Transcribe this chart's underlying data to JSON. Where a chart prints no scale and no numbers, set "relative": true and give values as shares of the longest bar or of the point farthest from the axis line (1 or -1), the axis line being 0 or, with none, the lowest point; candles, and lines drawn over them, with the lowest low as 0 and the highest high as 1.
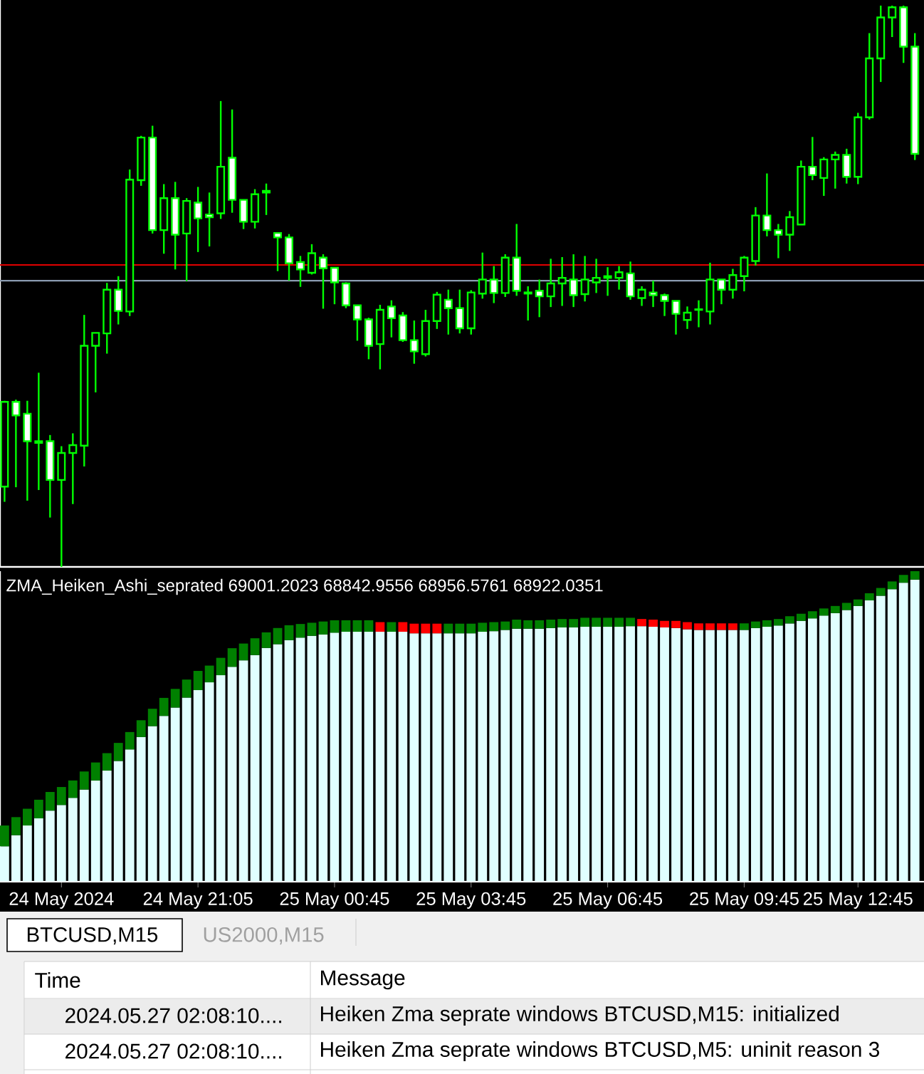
{
  "chart_data": [
    {
      "type": "candlestick",
      "relative": true,
      "color": "#00ff00",
      "categories": [
        null,
        null,
        null,
        null,
        null,
        null,
        null,
        null,
        null,
        null,
        null,
        null,
        null,
        null,
        null,
        null,
        null,
        null,
        null,
        null,
        null,
        null,
        null,
        null,
        null,
        null,
        null,
        null,
        null,
        null,
        null,
        null,
        null,
        null,
        null,
        null,
        null,
        null,
        null,
        null,
        null,
        null,
        null,
        null,
        null,
        null,
        null,
        null,
        null,
        null,
        null,
        null,
        null,
        null,
        null,
        null,
        null,
        null,
        null,
        null,
        null,
        null,
        null,
        null,
        null,
        null,
        null,
        null,
        null,
        null,
        null,
        null,
        null,
        null,
        null,
        null,
        null,
        null,
        null,
        null,
        null
      ],
      "ohlc": [
        [
          0.143,
          0.296,
          0.116,
          0.294
        ],
        [
          0.294,
          0.298,
          0.142,
          0.27
        ],
        [
          0.273,
          0.296,
          0.118,
          0.224
        ],
        [
          0.224,
          0.346,
          0.137,
          0.221
        ],
        [
          0.224,
          0.235,
          0.088,
          0.155
        ],
        [
          0.155,
          0.215,
          0.0,
          0.203
        ],
        [
          0.203,
          0.238,
          0.112,
          0.217
        ],
        [
          0.216,
          0.449,
          0.179,
          0.394
        ],
        [
          0.394,
          0.417,
          0.311,
          0.417
        ],
        [
          0.416,
          0.506,
          0.38,
          0.494
        ],
        [
          0.494,
          0.518,
          0.432,
          0.456
        ],
        [
          0.455,
          0.708,
          0.447,
          0.69
        ],
        [
          0.689,
          0.768,
          0.679,
          0.765
        ],
        [
          0.765,
          0.786,
          0.594,
          0.6
        ],
        [
          0.6,
          0.682,
          0.558,
          0.657
        ],
        [
          0.657,
          0.686,
          0.53,
          0.592
        ],
        [
          0.594,
          0.657,
          0.509,
          0.652
        ],
        [
          0.649,
          0.677,
          0.561,
          0.621
        ],
        [
          0.628,
          0.667,
          0.571,
          0.623
        ],
        [
          0.63,
          0.83,
          0.62,
          0.713
        ],
        [
          0.729,
          0.815,
          0.631,
          0.654
        ],
        [
          0.654,
          0.654,
          0.602,
          0.615
        ],
        [
          0.615,
          0.673,
          0.603,
          0.664
        ],
        [
          0.667,
          0.683,
          0.627,
          0.67
        ],
        [
          0.595,
          0.595,
          0.527,
          0.587
        ],
        [
          0.587,
          0.593,
          0.51,
          0.541
        ],
        [
          0.543,
          0.554,
          0.499,
          0.53
        ],
        [
          0.524,
          0.575,
          0.521,
          0.559
        ],
        [
          0.551,
          0.557,
          0.46,
          0.532
        ],
        [
          0.533,
          0.533,
          0.468,
          0.507
        ],
        [
          0.505,
          0.507,
          0.461,
          0.466
        ],
        [
          0.466,
          0.466,
          0.403,
          0.441
        ],
        [
          0.441,
          0.444,
          0.37,
          0.394
        ],
        [
          0.397,
          0.467,
          0.352,
          0.458
        ],
        [
          0.464,
          0.475,
          0.409,
          0.443
        ],
        [
          0.448,
          0.454,
          0.401,
          0.404
        ],
        [
          0.404,
          0.439,
          0.362,
          0.384
        ],
        [
          0.379,
          0.458,
          0.375,
          0.438
        ],
        [
          0.438,
          0.49,
          0.424,
          0.485
        ],
        [
          0.476,
          0.494,
          0.414,
          0.461
        ],
        [
          0.461,
          0.494,
          0.416,
          0.425
        ],
        [
          0.425,
          0.493,
          0.414,
          0.489
        ],
        [
          0.487,
          0.56,
          0.478,
          0.512
        ],
        [
          0.512,
          0.536,
          0.47,
          0.488
        ],
        [
          0.488,
          0.557,
          0.481,
          0.551
        ],
        [
          0.551,
          0.611,
          0.483,
          0.492
        ],
        [
          0.489,
          0.5,
          0.439,
          0.487
        ],
        [
          0.492,
          0.512,
          0.445,
          0.482
        ],
        [
          0.482,
          0.549,
          0.463,
          0.505
        ],
        [
          0.505,
          0.552,
          0.465,
          0.515
        ],
        [
          0.512,
          0.557,
          0.463,
          0.484
        ],
        [
          0.486,
          0.554,
          0.473,
          0.512
        ],
        [
          0.507,
          0.549,
          0.488,
          0.515
        ],
        [
          0.515,
          0.534,
          0.483,
          0.518
        ],
        [
          0.515,
          0.536,
          0.494,
          0.525
        ],
        [
          0.523,
          0.544,
          0.476,
          0.482
        ],
        [
          0.479,
          0.5,
          0.465,
          0.494
        ],
        [
          0.489,
          0.51,
          0.463,
          0.484
        ],
        [
          0.484,
          0.487,
          0.447,
          0.474
        ],
        [
          0.474,
          0.474,
          0.414,
          0.451
        ],
        [
          0.44,
          0.464,
          0.424,
          0.453
        ],
        [
          0.458,
          0.475,
          0.427,
          0.459
        ],
        [
          0.455,
          0.542,
          0.432,
          0.512
        ],
        [
          0.512,
          0.512,
          0.468,
          0.494
        ],
        [
          0.494,
          0.531,
          0.478,
          0.52
        ],
        [
          0.518,
          0.554,
          0.491,
          0.551
        ],
        [
          0.545,
          0.641,
          0.537,
          0.626
        ],
        [
          0.626,
          0.701,
          0.589,
          0.6
        ],
        [
          0.6,
          0.611,
          0.55,
          0.592
        ],
        [
          0.592,
          0.634,
          0.563,
          0.623
        ],
        [
          0.61,
          0.724,
          0.609,
          0.713
        ],
        [
          0.713,
          0.766,
          0.689,
          0.698
        ],
        [
          0.693,
          0.73,
          0.661,
          0.726
        ],
        [
          0.726,
          0.74,
          0.674,
          0.734
        ],
        [
          0.734,
          0.745,
          0.683,
          0.695
        ],
        [
          0.695,
          0.809,
          0.682,
          0.801
        ],
        [
          0.801,
          0.951,
          0.797,
          0.906
        ],
        [
          0.906,
          1.0,
          0.864,
          0.979
        ],
        [
          0.979,
          1.0,
          0.944,
          0.997
        ],
        [
          0.997,
          1.0,
          0.898,
          0.927
        ],
        [
          0.927,
          0.951,
          0.725,
          0.736
        ]
      ],
      "ref_lines": [
        {
          "axis": "y",
          "value": 0.538,
          "color": "#e00000"
        },
        {
          "axis": "y",
          "value": 0.51,
          "color": "#8a9bb0"
        }
      ]
    },
    {
      "type": "bar",
      "relative": true,
      "stacked": true,
      "title": "ZMA_Heiken_Ashi_seprated 69001.2023 68842.9556 68956.5761 68922.0351",
      "categories": [
        null,
        null,
        null,
        null,
        null,
        "24 May 2024",
        null,
        null,
        null,
        null,
        null,
        null,
        null,
        null,
        null,
        null,
        null,
        "24 May 21:05",
        null,
        null,
        null,
        null,
        null,
        null,
        null,
        null,
        null,
        null,
        null,
        "25 May 00:45",
        null,
        null,
        null,
        null,
        null,
        null,
        null,
        null,
        null,
        null,
        null,
        "25 May 03:45",
        null,
        null,
        null,
        null,
        null,
        null,
        null,
        null,
        null,
        null,
        null,
        "25 May 06:45",
        null,
        null,
        null,
        null,
        null,
        null,
        null,
        null,
        null,
        null,
        null,
        "25 May 09:45",
        null,
        null,
        null,
        null,
        null,
        null,
        null,
        null,
        null,
        "25 May 12:45",
        null,
        null,
        null,
        null,
        null
      ],
      "series": [
        {
          "color": "#e0ffff",
          "values": [
            0.114,
            0.15,
            0.181,
            0.204,
            0.229,
            0.247,
            0.27,
            0.297,
            0.326,
            0.358,
            0.389,
            0.426,
            0.466,
            0.501,
            0.534,
            0.561,
            0.593,
            0.617,
            0.642,
            0.665,
            0.692,
            0.713,
            0.73,
            0.753,
            0.765,
            0.778,
            0.786,
            0.792,
            0.796,
            0.802,
            0.805,
            0.805,
            0.805,
            0.805,
            0.805,
            0.805,
            0.8,
            0.8,
            0.8,
            0.8,
            0.8,
            0.8,
            0.805,
            0.807,
            0.811,
            0.815,
            0.815,
            0.815,
            0.817,
            0.819,
            0.819,
            0.821,
            0.821,
            0.821,
            0.821,
            0.823,
            0.823,
            0.821,
            0.819,
            0.817,
            0.813,
            0.811,
            0.811,
            0.811,
            0.811,
            0.811,
            0.817,
            0.821,
            0.825,
            0.832,
            0.84,
            0.848,
            0.857,
            0.865,
            0.875,
            0.888,
            0.906,
            0.921,
            0.942,
            0.963,
            0.973
          ]
        },
        {
          "color": "#008000",
          "values": [
            0.067,
            0.058,
            0.054,
            0.06,
            0.06,
            0.058,
            0.056,
            0.058,
            0.058,
            0.056,
            0.058,
            0.056,
            0.054,
            0.056,
            0.058,
            0.06,
            0.058,
            0.062,
            0.054,
            0.056,
            0.06,
            0.054,
            0.054,
            0.05,
            0.052,
            0.048,
            0.044,
            0.042,
            0.042,
            0.04,
            0.037,
            0.037,
            0.037,
            null,
            0.031,
            null,
            null,
            null,
            null,
            0.031,
            0.031,
            0.031,
            0.029,
            0.029,
            0.027,
            0.029,
            0.027,
            0.027,
            0.027,
            0.027,
            0.027,
            0.029,
            0.029,
            0.029,
            0.029,
            0.027,
            null,
            null,
            null,
            null,
            null,
            null,
            null,
            null,
            null,
            0.021,
            0.021,
            0.021,
            0.021,
            0.023,
            0.023,
            0.023,
            0.023,
            0.023,
            0.023,
            0.021,
            0.023,
            0.025,
            0.025,
            0.025,
            0.027
          ]
        },
        {
          "color": "#ff0000",
          "values": [
            null,
            null,
            null,
            null,
            null,
            null,
            null,
            null,
            null,
            null,
            null,
            null,
            null,
            null,
            null,
            null,
            null,
            null,
            null,
            null,
            null,
            null,
            null,
            null,
            null,
            null,
            null,
            null,
            null,
            null,
            null,
            null,
            null,
            0.031,
            null,
            0.031,
            0.031,
            0.031,
            0.031,
            null,
            null,
            null,
            null,
            null,
            null,
            null,
            null,
            null,
            null,
            null,
            null,
            null,
            null,
            null,
            null,
            null,
            0.023,
            0.023,
            0.021,
            0.023,
            0.023,
            0.021,
            0.021,
            0.021,
            0.021,
            null,
            null,
            null,
            null,
            null,
            null,
            null,
            null,
            null,
            null,
            null,
            null,
            null,
            null,
            null,
            null
          ]
        }
      ],
      "annotations": [
        "BTCUSD,M15",
        "US2000,M15",
        "Time",
        "Message",
        "2024.05.27 02:08:10....",
        "Heiken Zma seprate windows BTCUSD,M15: initialized",
        "2024.05.27 02:08:10....",
        "Heiken Zma seprate windows BTCUSD,M5: uninit reason 3"
      ]
    }
  ]
}
